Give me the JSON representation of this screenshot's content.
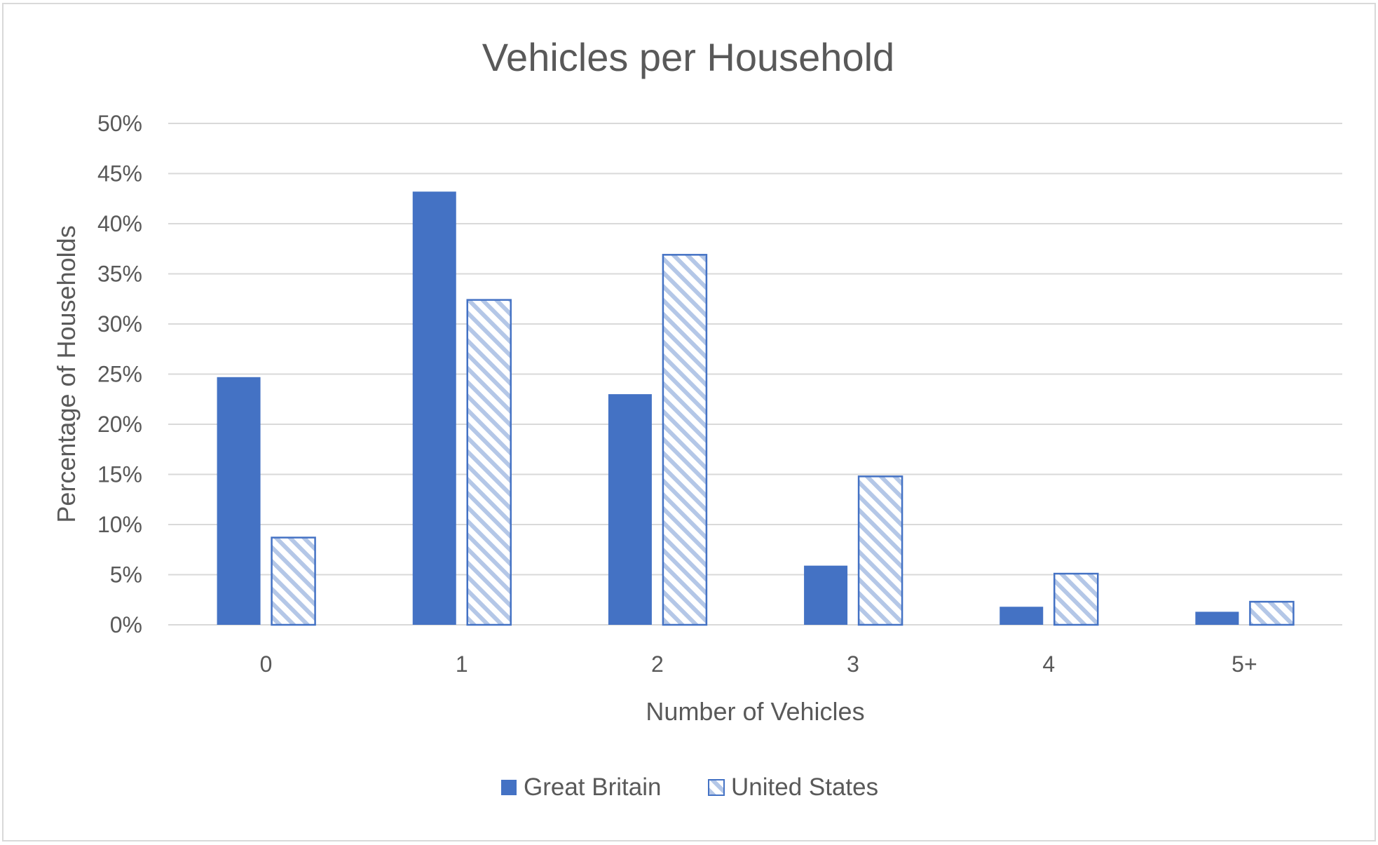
{
  "chart_data": {
    "type": "bar",
    "title": "Vehicles per Household",
    "xlabel": "Number of Vehicles",
    "ylabel": "Percentage of Households",
    "categories": [
      "0",
      "1",
      "2",
      "3",
      "4",
      "5+"
    ],
    "series": [
      {
        "name": "Great Britain",
        "values": [
          24.7,
          43.2,
          23.0,
          5.9,
          1.8,
          1.3
        ],
        "color": "#4472c4",
        "fill": "solid"
      },
      {
        "name": "United States",
        "values": [
          8.7,
          32.4,
          36.9,
          14.8,
          5.1,
          2.3
        ],
        "color": "#4472c4",
        "fill": "diagonal-hatch"
      }
    ],
    "ylim": [
      0,
      50
    ],
    "yticks": [
      0,
      5,
      10,
      15,
      20,
      25,
      30,
      35,
      40,
      45,
      50
    ],
    "yticks_labels": [
      "0%",
      "5%",
      "10%",
      "15%",
      "20%",
      "25%",
      "30%",
      "35%",
      "40%",
      "45%",
      "50%"
    ],
    "grid": true,
    "legend_position": "bottom"
  }
}
